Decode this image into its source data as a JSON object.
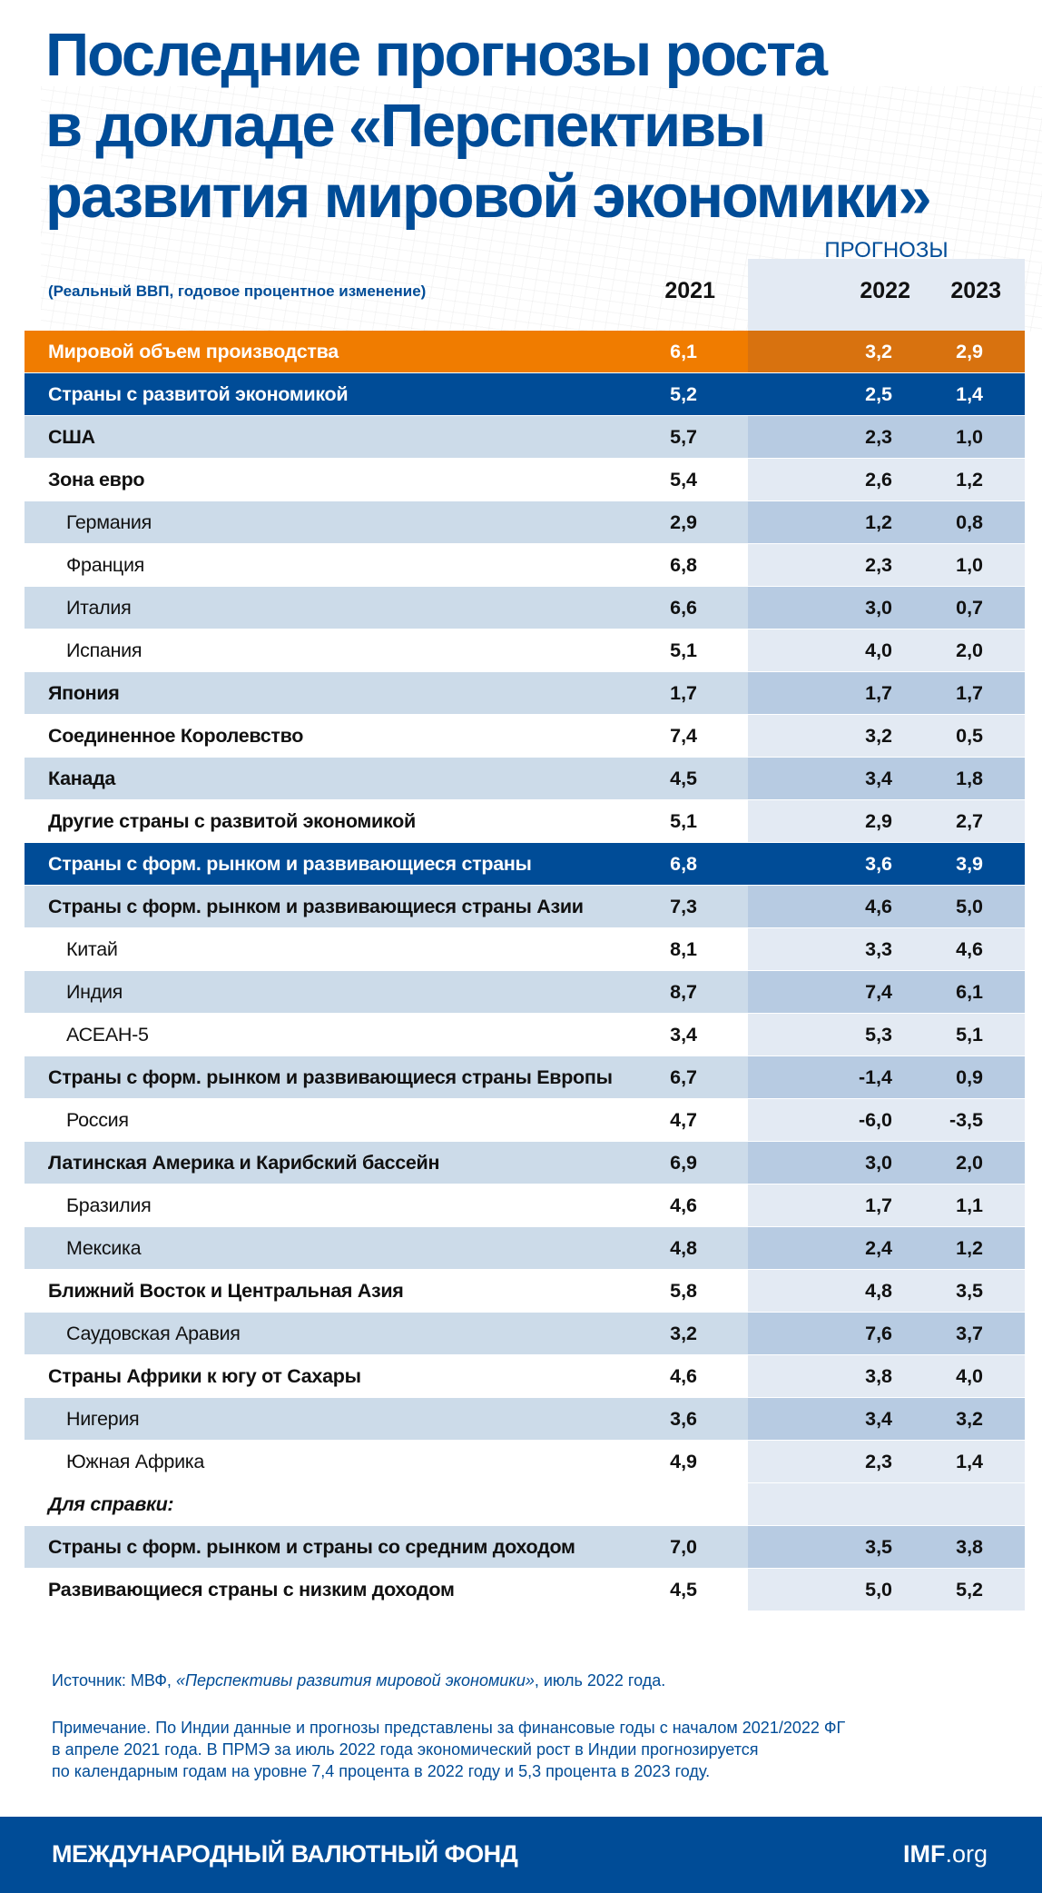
{
  "title_lines": [
    "Последние прогнозы роста",
    "в докладе «Перспективы",
    "развития мировой экономики»"
  ],
  "subtitle": "(Реальный ВВП, годовое процентное изменение)",
  "forecast_label": "ПРОГНОЗЫ",
  "colors": {
    "blue": "#004c97",
    "orange": "#f07c00",
    "row_shade": "#ccdbe9",
    "forecast_shade": "#b7cbe2"
  },
  "chart_data": {
    "type": "table",
    "title": "Последние прогнозы роста в докладе «Перспективы развития мировой экономики»",
    "subtitle": "(Реальный ВВП, годовое процентное изменение)",
    "columns": [
      "2021",
      "2022",
      "2023"
    ],
    "forecast_columns": [
      "2022",
      "2023"
    ],
    "rows": [
      {
        "label": "Мировой объем производства",
        "style": "world",
        "values": [
          "6,1",
          "3,2",
          "2,9"
        ]
      },
      {
        "label": "Страны с развитой экономикой",
        "style": "group",
        "values": [
          "5,2",
          "2,5",
          "1,4"
        ]
      },
      {
        "label": "США",
        "style": "main",
        "values": [
          "5,7",
          "2,3",
          "1,0"
        ]
      },
      {
        "label": "Зона евро",
        "style": "main",
        "values": [
          "5,4",
          "2,6",
          "1,2"
        ]
      },
      {
        "label": "Германия",
        "style": "sub",
        "values": [
          "2,9",
          "1,2",
          "0,8"
        ]
      },
      {
        "label": "Франция",
        "style": "sub",
        "values": [
          "6,8",
          "2,3",
          "1,0"
        ]
      },
      {
        "label": "Италия",
        "style": "sub",
        "values": [
          "6,6",
          "3,0",
          "0,7"
        ]
      },
      {
        "label": "Испания",
        "style": "sub",
        "values": [
          "5,1",
          "4,0",
          "2,0"
        ]
      },
      {
        "label": "Япония",
        "style": "main",
        "values": [
          "1,7",
          "1,7",
          "1,7"
        ]
      },
      {
        "label": "Соединенное Королевство",
        "style": "main",
        "values": [
          "7,4",
          "3,2",
          "0,5"
        ]
      },
      {
        "label": "Канада",
        "style": "main",
        "values": [
          "4,5",
          "3,4",
          "1,8"
        ]
      },
      {
        "label": "Другие страны с развитой экономикой",
        "style": "main",
        "values": [
          "5,1",
          "2,9",
          "2,7"
        ]
      },
      {
        "label": "Страны с форм. рынком и развивающиеся страны",
        "style": "group",
        "values": [
          "6,8",
          "3,6",
          "3,9"
        ]
      },
      {
        "label": "Страны с форм. рынком и развивающиеся страны Азии",
        "style": "main",
        "values": [
          "7,3",
          "4,6",
          "5,0"
        ]
      },
      {
        "label": "Китай",
        "style": "sub",
        "values": [
          "8,1",
          "3,3",
          "4,6"
        ]
      },
      {
        "label": "Индия",
        "style": "sub",
        "values": [
          "8,7",
          "7,4",
          "6,1"
        ]
      },
      {
        "label": "АСЕАН-5",
        "style": "sub",
        "values": [
          "3,4",
          "5,3",
          "5,1"
        ]
      },
      {
        "label": "Страны с форм. рынком и развивающиеся страны Европы",
        "style": "main",
        "values": [
          "6,7",
          "-1,4",
          "0,9"
        ]
      },
      {
        "label": "Россия",
        "style": "sub",
        "values": [
          "4,7",
          "-6,0",
          "-3,5"
        ]
      },
      {
        "label": "Латинская Америка и Карибский бассейн",
        "style": "main",
        "values": [
          "6,9",
          "3,0",
          "2,0"
        ]
      },
      {
        "label": "Бразилия",
        "style": "sub",
        "values": [
          "4,6",
          "1,7",
          "1,1"
        ]
      },
      {
        "label": "Мексика",
        "style": "sub",
        "values": [
          "4,8",
          "2,4",
          "1,2"
        ]
      },
      {
        "label": "Ближний Восток и Центральная Азия",
        "style": "main",
        "values": [
          "5,8",
          "4,8",
          "3,5"
        ]
      },
      {
        "label": "Саудовская Аравия",
        "style": "sub",
        "values": [
          "3,2",
          "7,6",
          "3,7"
        ]
      },
      {
        "label": "Страны Африки к югу от Сахары",
        "style": "main",
        "values": [
          "4,6",
          "3,8",
          "4,0"
        ]
      },
      {
        "label": "Нигерия",
        "style": "sub",
        "values": [
          "3,6",
          "3,4",
          "3,2"
        ]
      },
      {
        "label": "Южная Африка",
        "style": "sub",
        "values": [
          "4,9",
          "2,3",
          "1,4"
        ]
      },
      {
        "label": "Для справки:",
        "style": "note",
        "values": [
          "",
          "",
          ""
        ]
      },
      {
        "label": "Страны с форм. рынком и страны со средним доходом",
        "style": "main",
        "values": [
          "7,0",
          "3,5",
          "3,8"
        ]
      },
      {
        "label": "Развивающиеся страны с низким доходом",
        "style": "main",
        "values": [
          "4,5",
          "5,0",
          "5,2"
        ]
      }
    ]
  },
  "source": {
    "prefix": "Источник: МВФ, ",
    "title": "«Перспективы развития мировой экономики»",
    "suffix": ", июль 2022 года."
  },
  "note_lines": [
    "Примечание. По Индии данные и прогнозы представлены за финансовые годы с началом 2021/2022 ФГ",
    "в апреле 2021 года. В ПРМЭ за июль 2022 года экономический рост в Индии  прогнозируется",
    "по календарным годам на уровне 7,4 процента в 2022 году и 5,3 процента в 2023 году."
  ],
  "footer": {
    "org": "МЕЖДУНАРОДНЫЙ ВАЛЮТНЫЙ ФОНД",
    "site_bold": "IMF",
    "site_rest": ".org"
  }
}
